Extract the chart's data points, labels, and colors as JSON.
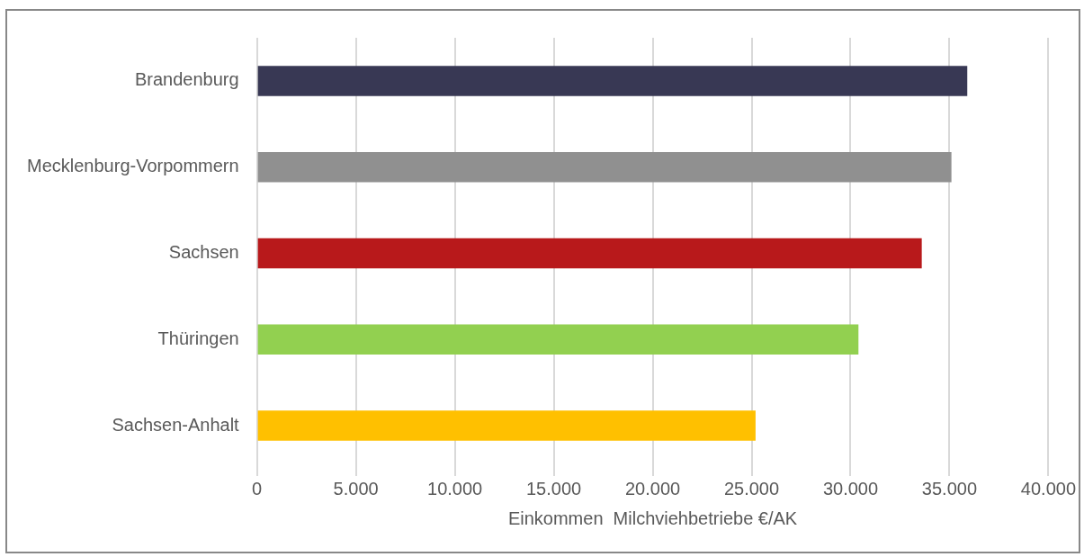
{
  "chart_data": {
    "type": "bar",
    "orientation": "horizontal",
    "xlabel": "Einkommen  Milchviehbetriebe €/AK",
    "categories": [
      "Brandenburg",
      "Mecklenburg-Vorpommern",
      "Sachsen",
      "Thüringen",
      "Sachsen-Anhalt"
    ],
    "values": [
      35900,
      35100,
      33600,
      30400,
      25200
    ],
    "colors": [
      "#383854",
      "#909090",
      "#b8191b",
      "#92d050",
      "#ffc000"
    ],
    "xlim": [
      0,
      40000
    ],
    "xticks": [
      0,
      {
        "value": 5000,
        "label": "5.000"
      },
      {
        "value": 10000,
        "label": "10.000"
      },
      {
        "value": 15000,
        "label": "15.000"
      },
      {
        "value": 20000,
        "label": "20.000"
      },
      {
        "value": 25000,
        "label": "25.000"
      },
      {
        "value": 30000,
        "label": "30.000"
      },
      {
        "value": 35000,
        "label": "35.000"
      },
      {
        "value": 40000,
        "label": "40.000"
      }
    ],
    "grid": "x",
    "legend": false
  }
}
